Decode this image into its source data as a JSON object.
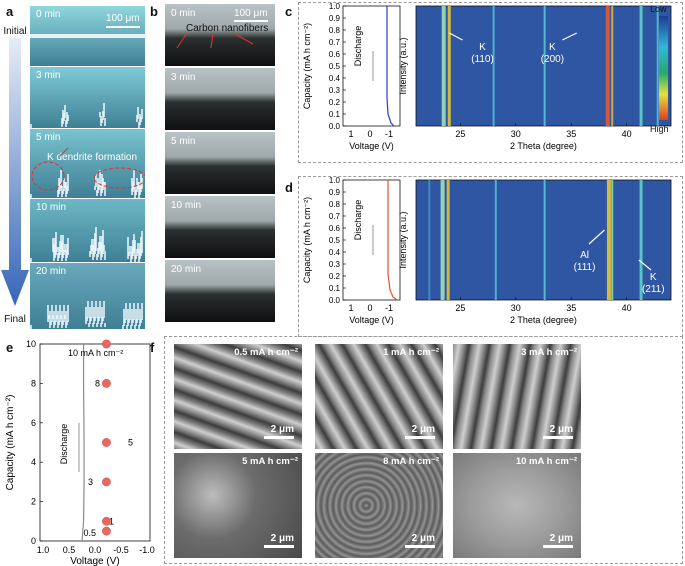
{
  "panel_letters": {
    "a": "a",
    "b": "b",
    "c": "c",
    "d": "d",
    "e": "e",
    "f": "f"
  },
  "panel_a": {
    "initial": "Initial",
    "final": "Final",
    "scale": "100 μm",
    "times": [
      "0 min",
      "3 min",
      "5 min",
      "10 min",
      "20 min"
    ],
    "annotation": "K dendrite formation",
    "colors": [
      "#8fd7df",
      "#7fcbd6",
      "#79c3cf",
      "#6db8c6",
      "#6aa9bc"
    ]
  },
  "panel_b": {
    "scale": "100 μm",
    "annotation": "Carbon nanofibers",
    "times": [
      "0 min",
      "3 min",
      "5 min",
      "10 min",
      "20 min"
    ]
  },
  "panel_c": {
    "ylabel": "Capacity (mA h cm⁻²)",
    "xlabel_left": "Voltage (V)",
    "xlabel_right": "2 Theta (degree)",
    "intensity_label": "Intensity (a.u.)",
    "discharge": "Discharge",
    "yticks": [
      "0.0",
      "0.1",
      "0.2",
      "0.3",
      "0.4",
      "0.5",
      "0.6",
      "0.7",
      "0.8",
      "0.9",
      "1.0"
    ],
    "vticks": [
      "1",
      "0",
      "-1"
    ],
    "thetaticks": [
      "25",
      "30",
      "35",
      "40"
    ],
    "peak1": "K",
    "peak1_hkl": "(110)",
    "peak2": "K",
    "peak2_hkl": "(200)",
    "line_color": "#2340c8"
  },
  "panel_d": {
    "ylabel": "Capacity (mA h cm⁻²)",
    "xlabel_left": "Voltage (V)",
    "xlabel_right": "2 Theta (degree)",
    "intensity_label": "Intensity (a.u.)",
    "discharge": "Discharge",
    "yticks": [
      "0.0",
      "0.1",
      "0.2",
      "0.3",
      "0.4",
      "0.5",
      "0.6",
      "0.7",
      "0.8",
      "0.9",
      "1.0"
    ],
    "vticks": [
      "1",
      "0",
      "-1"
    ],
    "thetaticks": [
      "25",
      "30",
      "35",
      "40"
    ],
    "peak1": "Al",
    "peak1_hkl": "(111)",
    "peak2": "K",
    "peak2_hkl": "(211)",
    "line_color": "#e2532b"
  },
  "colorbar": {
    "low": "Low",
    "high": "High"
  },
  "panel_e": {
    "ylabel": "Capacity (mA h cm⁻²)",
    "xlabel": "Voltage (V)",
    "discharge": "Discharge",
    "yticks": [
      "0",
      "2",
      "4",
      "6",
      "8",
      "10"
    ],
    "xticks": [
      "1.0",
      "0.5",
      "0.0",
      "-0.5",
      "-1.0"
    ],
    "point_labels": [
      "10 mA h cm⁻²",
      "8",
      "5",
      "3",
      "1",
      "0.5"
    ],
    "capacities": [
      10,
      8,
      5,
      3,
      1,
      0.5
    ],
    "marker_color": "#e8685f"
  },
  "panel_f": {
    "labels": [
      "0.5 mA h cm⁻²",
      "1 mA h cm⁻²",
      "3 mA h cm⁻²",
      "5 mA h cm⁻²",
      "8 mA h cm⁻²",
      "10 mA h cm⁻²"
    ],
    "scale": "2 μm"
  }
}
